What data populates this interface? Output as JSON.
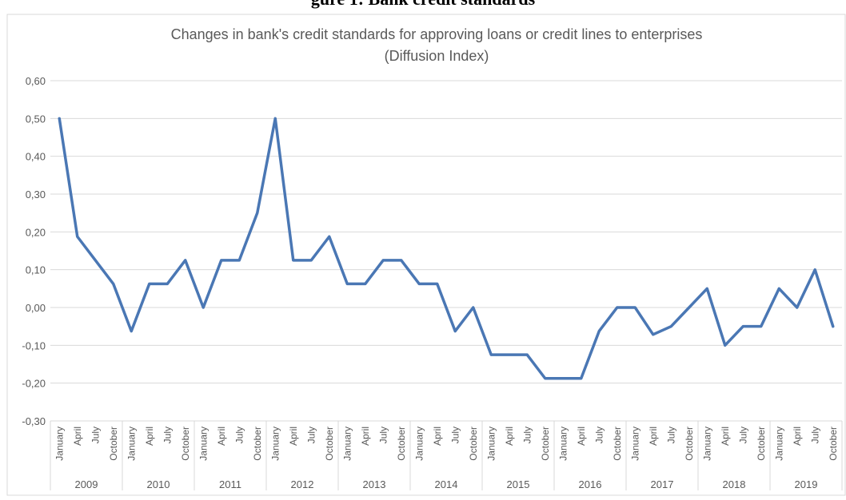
{
  "heading_fragment": "gure 1: Bank credit standards",
  "chart_data": {
    "type": "line",
    "title": "Changes in bank's credit standards for approving loans or credit lines to enterprises",
    "subtitle": "(Diffusion Index)",
    "xlabel": "",
    "ylabel": "",
    "ylim": [
      -0.3,
      0.6
    ],
    "y_ticks": [
      "0,60",
      "0,50",
      "0,40",
      "0,30",
      "0,20",
      "0,10",
      "0,00",
      "-0,10",
      "-0,20",
      "-0,30"
    ],
    "y_tick_values": [
      0.6,
      0.5,
      0.4,
      0.3,
      0.2,
      0.1,
      0.0,
      -0.1,
      -0.2,
      -0.3
    ],
    "grid": true,
    "legend": "none",
    "line_color": "#4a77b4",
    "years": [
      "2009",
      "2010",
      "2011",
      "2012",
      "2013",
      "2014",
      "2015",
      "2016",
      "2017",
      "2018",
      "2019"
    ],
    "quarters": [
      "January",
      "April",
      "July",
      "October"
    ],
    "values": [
      0.5,
      0.1875,
      0.125,
      0.0625,
      -0.0625,
      0.0625,
      0.0625,
      0.125,
      0.0,
      0.125,
      0.125,
      0.25,
      0.5,
      0.125,
      0.125,
      0.1875,
      0.0625,
      0.0625,
      0.125,
      0.125,
      0.0625,
      0.0625,
      -0.0625,
      0.0,
      -0.125,
      -0.125,
      -0.125,
      -0.1875,
      -0.1875,
      -0.1875,
      -0.0625,
      0.0,
      0.0,
      -0.0714,
      -0.05,
      0.0,
      0.05,
      -0.1,
      -0.05,
      -0.05,
      0.05,
      0.0,
      0.1,
      -0.05
    ]
  }
}
